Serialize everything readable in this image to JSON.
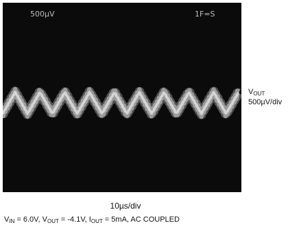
{
  "chart_data": {
    "type": "line",
    "title": "",
    "screen_labels": {
      "left": "500µV",
      "right": "1F=S"
    },
    "side_label": {
      "name_main": "V",
      "name_sub": "OUT",
      "scale": "500µV/div"
    },
    "xlabel": "10µs/div",
    "conditions": [
      {
        "main": "V",
        "sub": "IN",
        "rest": " = 6.0V, "
      },
      {
        "main": "V",
        "sub": "OUT",
        "rest": " = -4.1V, "
      },
      {
        "main": "I",
        "sub": "OUT",
        "rest": " = 5mA, AC COUPLED"
      }
    ],
    "x_divisions": 10,
    "x_unit": "µs",
    "y_unit": "µV",
    "waveform": {
      "description": "triangular ripple",
      "period_us": 10.4,
      "peak_to_peak_uV": 450,
      "cycles": 9.5
    },
    "colors": {
      "screen": "#0b0b0b",
      "trace": "#d8d8d8"
    }
  }
}
